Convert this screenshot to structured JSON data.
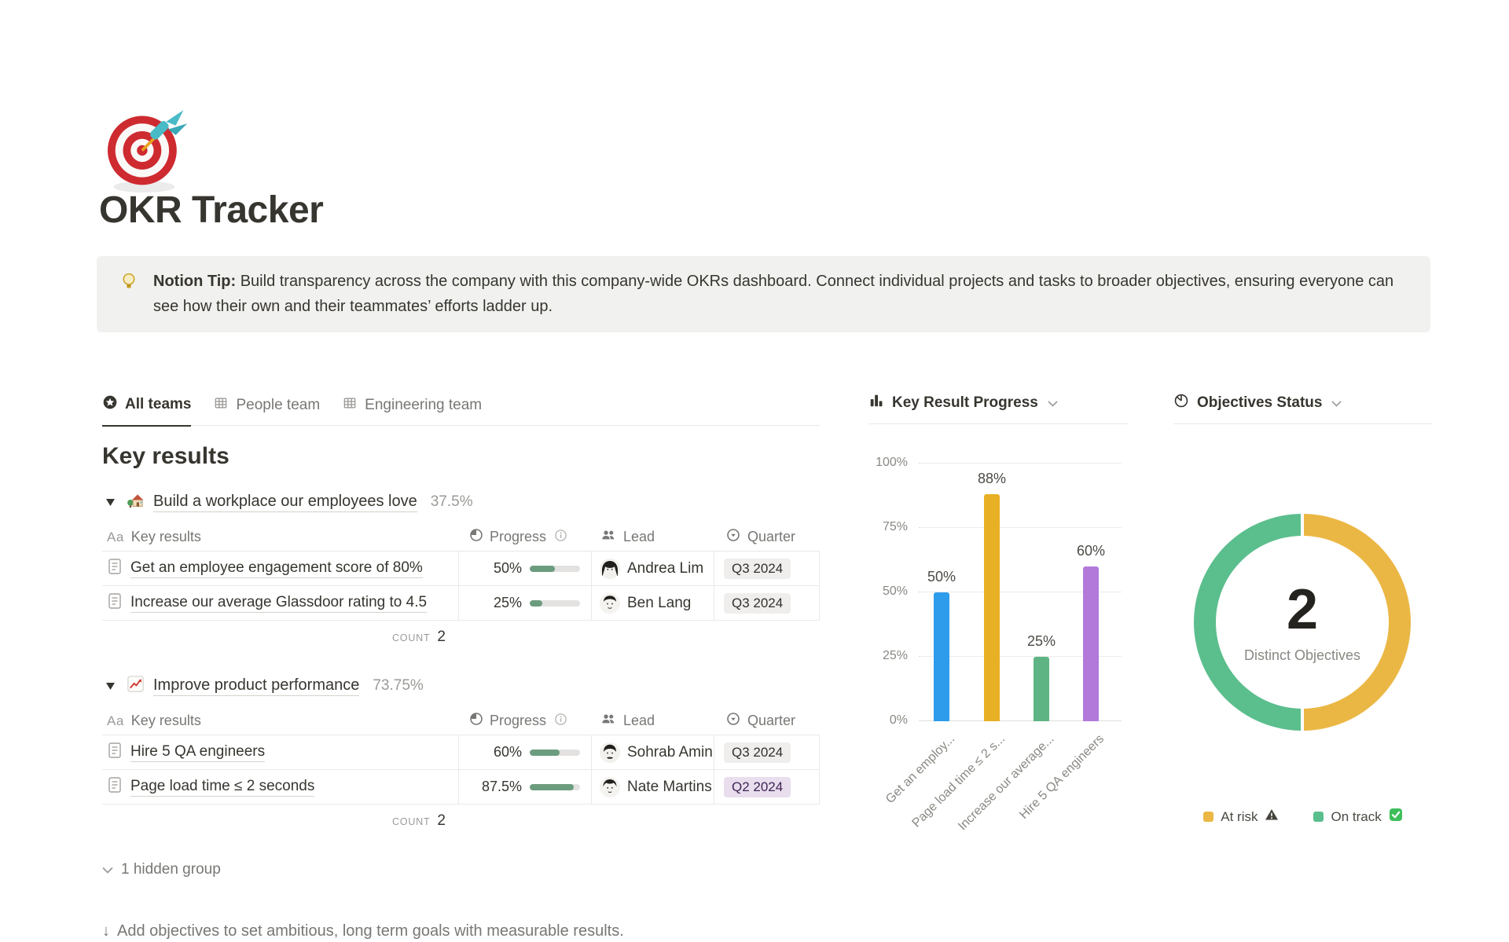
{
  "page": {
    "title": "OKR Tracker"
  },
  "callout": {
    "label": "Notion Tip:",
    "text": "Build transparency across the company with this company-wide OKRs dashboard. Connect individual projects and tasks to broader objectives, ensuring everyone can see how their own and their teammates’ efforts ladder up."
  },
  "tabs": [
    {
      "label": "All teams",
      "active": true
    },
    {
      "label": "People team",
      "active": false
    },
    {
      "label": "Engineering team",
      "active": false
    }
  ],
  "section_heading": "Key results",
  "table_header": {
    "name_icon": "Aa",
    "name": "Key results",
    "progress": "Progress",
    "lead": "Lead",
    "quarter": "Quarter"
  },
  "groups": [
    {
      "title": "Build a workplace our employees love",
      "emoji": "house-with-garden",
      "percent": "37.5%",
      "count_label": "COUNT",
      "count": "2",
      "rows": [
        {
          "name": "Get an employee engagement score of 80%",
          "progress": "50%",
          "progress_value": 50,
          "lead": "Andrea Lim",
          "quarter": "Q3 2024",
          "quarter_color": "gray"
        },
        {
          "name": "Increase our average Glassdoor rating to 4.5",
          "progress": "25%",
          "progress_value": 25,
          "lead": "Ben Lang",
          "quarter": "Q3 2024",
          "quarter_color": "gray"
        }
      ]
    },
    {
      "title": "Improve product performance",
      "emoji": "chart-increasing",
      "percent": "73.75%",
      "count_label": "COUNT",
      "count": "2",
      "rows": [
        {
          "name": "Hire 5 QA engineers",
          "progress": "60%",
          "progress_value": 60,
          "lead": "Sohrab Amin",
          "quarter": "Q3 2024",
          "quarter_color": "gray"
        },
        {
          "name": "Page load time ≤ 2 seconds",
          "progress": "87.5%",
          "progress_value": 87.5,
          "lead": "Nate Martins",
          "quarter": "Q2 2024",
          "quarter_color": "purple"
        }
      ]
    }
  ],
  "hidden_group_label": "1 hidden group",
  "footer": {
    "arrow": "↓",
    "text": "Add objectives to set ambitious, long term goals with measurable results."
  },
  "colors": {
    "progress_fill": "#6C9C7E",
    "progress_track": "#E3E2E0",
    "badge_gray_bg": "#EFEEEC",
    "badge_purple_bg": "#E8DEEE",
    "callout_bg": "#F1F1EF",
    "border": "#E9E9E7"
  },
  "chart_data": [
    {
      "type": "bar",
      "title": "Key Result Progress",
      "categories": [
        "Get an employee engagement score of 80%",
        "Page load time ≤ 2 seconds",
        "Increase our average Glassdoor rating to 4.5",
        "Hire 5 QA engineers"
      ],
      "tick_labels": [
        "Get an employ...",
        "Page load time ≤ 2 s...",
        "Increase our average...",
        "Hire 5 QA engineers"
      ],
      "values": [
        50,
        88,
        25,
        60
      ],
      "data_labels": [
        "50%",
        "88%",
        "25%",
        "60%"
      ],
      "colors": [
        "#2E9CEB",
        "#E8B024",
        "#5EB583",
        "#B279DB"
      ],
      "ylabel": "",
      "xlabel": "",
      "ylim": [
        0,
        100
      ],
      "yticks": [
        "0%",
        "25%",
        "50%",
        "75%",
        "100%"
      ],
      "grid": "horizontal-dotted",
      "tick_rotation": -45
    },
    {
      "type": "pie",
      "title": "Objectives Status",
      "donut": true,
      "slices": [
        {
          "label": "At risk",
          "value": 1,
          "color": "#EBB744",
          "status_icon": "warning"
        },
        {
          "label": "On track",
          "value": 1,
          "color": "#5BBE8D",
          "status_icon": "check"
        }
      ],
      "center_value": "2",
      "center_label": "Distinct Objectives",
      "legend_position": "bottom"
    }
  ]
}
